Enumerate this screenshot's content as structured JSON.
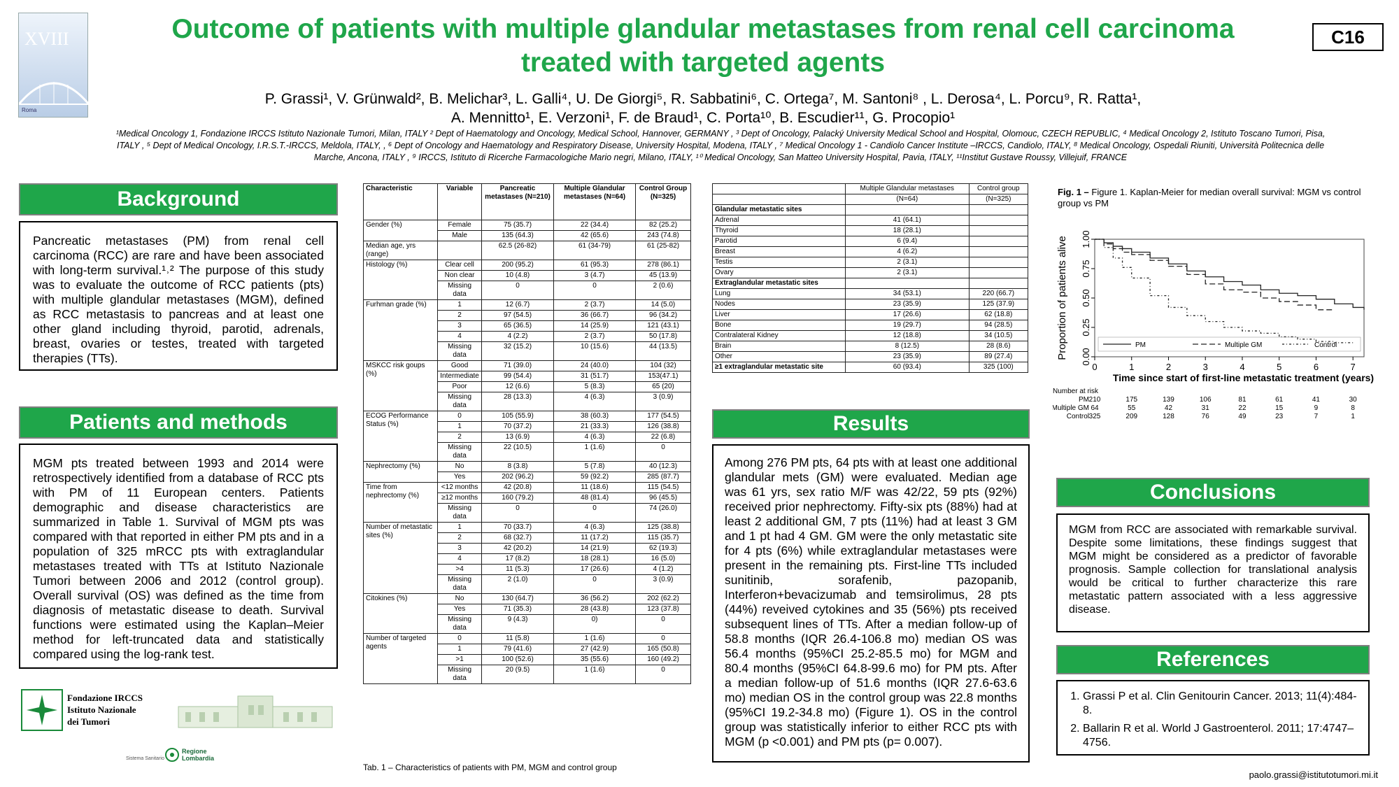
{
  "poster_code": "C16",
  "title_line1": "Outcome of patients with multiple glandular metastases from renal cell carcinoma",
  "title_line2": "treated with targeted agents",
  "authors_line1": "P. Grassi¹, V. Grünwald², B. Melichar³, L. Galli⁴, U. De Giorgi⁵, R. Sabbatini⁶, C. Ortega⁷, M. Santoni⁸ , L. Derosa⁴, L. Porcu⁹, R. Ratta¹,",
  "authors_line2": "A.  Mennitto¹, E. Verzoni¹, F. de Braud¹, C. Porta¹⁰, B. Escudier¹¹, G. Procopio¹",
  "affiliations": "¹Medical Oncology 1, Fondazione IRCCS Istituto Nazionale Tumori, Milan, ITALY  ² Dept of Haematology and Oncology, Medical School, Hannover, GERMANY , ³ Dept of Oncology, Palacký University Medical School and Hospital, Olomouc, CZECH REPUBLIC, ⁴ Medical Oncology  2, Istituto Toscano Tumori, Pisa, ITALY , ⁵ Dept of Medical Oncology, I.R.S.T.-IRCCS, Meldola, ITALY, , ⁶ Dept of Oncology and Haematology and Respiratory Disease, University Hospital, Modena, ITALY , ⁷ Medical Oncology 1 - Candiolo Cancer Institute –IRCCS, Candiolo, ITALY, ⁸ Medical Oncology, Ospedali Riuniti, Università Politecnica delle Marche, Ancona, ITALY , ⁹  IRCCS, Istituto di Ricerche Farmacologiche Mario negri, Milano,  ITALY, ¹⁰ Medical Oncology, San Matteo  University Hospital, Pavia, ITALY, ¹¹Institut Gustave Roussy, Villejuif, FRANCE",
  "badge": {
    "roman": "XVIII",
    "city": "Roma"
  },
  "sections": {
    "background_title": "Background",
    "background_text": "Pancreatic metastases (PM) from renal cell carcinoma (RCC) are rare and have been associated with long-term survival.¹˒² The purpose of this study was to evaluate the outcome of RCC patients (pts) with multiple glandular metastases (MGM), defined as RCC metastasis to pancreas and at least one other gland including thyroid, parotid, adrenals, breast, ovaries or testes, treated with targeted therapies (TTs).",
    "methods_title": "Patients and methods",
    "methods_text": "MGM pts treated between 1993 and 2014 were retrospectively identified from a database of RCC pts with PM of 11 European centers. Patients demographic and disease characteristics are summarized in Table 1. Survival of MGM pts was compared with that reported in either PM pts and in a population of 325 mRCC pts with extraglandular metastases treated with TTs at Istituto Nazionale Tumori between 2006 and 2012 (control group). Overall survival (OS) was defined as the time from diagnosis of metastatic disease to death. Survival functions were estimated using the Kaplan–Meier method for left-truncated data and statistically compared using the log-rank test.",
    "results_title": "Results",
    "results_text": "Among 276 PM pts, 64 pts with at least one additional glandular mets (GM) were evaluated. Median age was 61 yrs, sex ratio M/F was 42/22, 59 pts (92%) received prior nephrectomy. Fifty-six pts (88%) had at least 2 additional GM, 7 pts (11%) had at least 3 GM and 1 pt had 4 GM. GM were the only metastatic site for 4 pts (6%) while extraglandular metastases were present in the remaining pts. First-line TTs included sunitinib, sorafenib, pazopanib, Interferon+bevacizumab and temsirolimus, 28 pts (44%) reveived cytokines and 35 (56%) pts received subsequent lines of TTs. After a median follow-up of 58.8 months (IQR 26.4-106.8 mo) median OS was 56.4 months (95%CI 25.2-85.5 mo) for MGM and 80.4 months (95%CI 64.8-99.6 mo) for PM pts. After a median follow-up of 51.6 months (IQR 27.6-63.6 mo) median OS in the control group was 22.8 months (95%CI 19.2-34.8 mo) (Figure 1). OS in the control group was statistically inferior to either RCC pts with MGM (p <0.001) and PM pts (p= 0.007).",
    "conclusions_title": "Conclusions",
    "conclusions_text": "MGM from RCC are associated with remarkable survival. Despite some limitations, these findings suggest that MGM might be considered as a predictor of favorable prognosis. Sample collection for translational analysis would be critical to further characterize this rare metastatic pattern associated with a less aggressive disease.",
    "references_title": "References",
    "references": [
      "Grassi P et al. Clin Genitourin Cancer. 2013; 11(4):484-8.",
      "Ballarin R et al. World J Gastroenterol. 2011; 17:4747–4756."
    ]
  },
  "logos": {
    "ins_line1": "Fondazione IRCCS",
    "ins_line2": "Istituto Nazionale",
    "ins_line3": "dei Tumori",
    "regione_line1": "Regione",
    "regione_line2": "Lombardia",
    "sistema": "Sistema Sanitario"
  },
  "table1": {
    "headers": [
      "Characteristic",
      "Variable",
      "Pancreatic metastases (N=210)",
      "Multiple Glandular metastases (N=64)",
      "Control Group (N=325)"
    ],
    "groups": [
      {
        "name": "Gender (%)",
        "rows": [
          [
            "Female",
            "75 (35.7)",
            "22 (34.4)",
            "82 (25.2)"
          ],
          [
            "Male",
            "135 (64.3)",
            "42 (65.6)",
            "243 (74.8)"
          ]
        ]
      },
      {
        "name": "Median age, yrs (range)",
        "rows": [
          [
            "",
            "62.5 (26-82)",
            "61 (34-79)",
            "61 (25-82)"
          ]
        ]
      },
      {
        "name": "Histology (%)",
        "rows": [
          [
            "Clear cell",
            "200 (95.2)",
            "61 (95.3)",
            "278 (86.1)"
          ],
          [
            "Non clear",
            "10 (4.8)",
            "3 (4.7)",
            "45 (13.9)"
          ],
          [
            "Missing data",
            "0",
            "0",
            "2 (0.6)"
          ]
        ]
      },
      {
        "name": "Furhman grade (%)",
        "rows": [
          [
            "1",
            "12 (6.7)",
            "2 (3.7)",
            "14 (5.0)"
          ],
          [
            "2",
            "97 (54.5)",
            "36 (66.7)",
            "96 (34.2)"
          ],
          [
            "3",
            "65 (36.5)",
            "14 (25.9)",
            "121 (43.1)"
          ],
          [
            "4",
            "4 (2.2)",
            "2 (3.7)",
            "50 (17.8)"
          ],
          [
            "Missing data",
            "32 (15.2)",
            "10 (15.6)",
            "44 (13.5)"
          ]
        ]
      },
      {
        "name": "MSKCC risk goups (%)",
        "rows": [
          [
            "Good",
            "71 (39.0)",
            "24 (40.0)",
            "104 (32)"
          ],
          [
            "Intermediate",
            "99 (54.4)",
            "31 (51.7)",
            "153(47.1)"
          ],
          [
            "Poor",
            "12 (6.6)",
            "5 (8.3)",
            "65 (20)"
          ],
          [
            "Missing data",
            "28 (13.3)",
            "4 (6.3)",
            "3 (0.9)"
          ]
        ]
      },
      {
        "name": "ECOG Performance Status (%)",
        "rows": [
          [
            "0",
            "105 (55.9)",
            "38 (60.3)",
            "177 (54.5)"
          ],
          [
            "1",
            "70 (37.2)",
            "21 (33.3)",
            "126 (38.8)"
          ],
          [
            "2",
            "13 (6.9)",
            "4 (6.3)",
            "22 (6.8)"
          ],
          [
            "Missing data",
            "22 (10.5)",
            "1 (1.6)",
            "0"
          ]
        ]
      },
      {
        "name": "Nephrectomy (%)",
        "rows": [
          [
            "No",
            "8 (3.8)",
            "5 (7.8)",
            "40 (12.3)"
          ],
          [
            "Yes",
            "202 (96.2)",
            "59 (92.2)",
            "285 (87.7)"
          ]
        ]
      },
      {
        "name": "Time from nephrectomy (%)",
        "rows": [
          [
            "<12 months",
            "42 (20.8)",
            "11 (18.6)",
            "115 (54.5)"
          ],
          [
            "≥12 months",
            "160 (79.2)",
            "48 (81.4)",
            "96 (45.5)"
          ],
          [
            "Missing data",
            "0",
            "0",
            "74 (26.0)"
          ]
        ]
      },
      {
        "name": "Number of metastatic sites (%)",
        "rows": [
          [
            "1",
            "70 (33.7)",
            "4 (6.3)",
            "125 (38.8)"
          ],
          [
            "2",
            "68 (32.7)",
            "11 (17.2)",
            "115 (35.7)"
          ],
          [
            "3",
            "42 (20.2)",
            "14 (21.9)",
            "62 (19.3)"
          ],
          [
            "4",
            "17 (8.2)",
            "18 (28.1)",
            "16 (5.0)"
          ],
          [
            ">4",
            "11 (5.3)",
            "17 (26.6)",
            "4 (1.2)"
          ],
          [
            "Missing data",
            "2 (1.0)",
            "0",
            "3 (0.9)"
          ]
        ]
      },
      {
        "name": "Citokines (%)",
        "rows": [
          [
            "No",
            "130 (64.7)",
            "36 (56.2)",
            "202 (62.2)"
          ],
          [
            "Yes",
            "71 (35.3)",
            "28 (43.8)",
            "123 (37.8)"
          ],
          [
            "Missing data",
            "9 (4.3)",
            "0)",
            "0"
          ]
        ]
      },
      {
        "name": "Number of  targeted agents",
        "rows": [
          [
            "0",
            "11 (5.8)",
            "1 (1.6)",
            "0"
          ],
          [
            "1",
            "79 (41.6)",
            "27 (42.9)",
            "165 (50.8)"
          ],
          [
            ">1",
            "100 (52.6)",
            "35 (55.6)",
            "160 (49.2)"
          ],
          [
            "Missing data",
            "20 (9.5)",
            "1 (1.6)",
            "0"
          ]
        ]
      }
    ],
    "caption": "Tab. 1 – Characteristics of patients with PM, MGM and control group"
  },
  "table2": {
    "head1": "Multiple Glandular metastases",
    "head2": "Control group",
    "n1": "(N=64)",
    "n2": "(N=325)",
    "sections": [
      {
        "title": "Glandular metastatic sites",
        "rows": [
          [
            "Adrenal",
            "41 (64.1)",
            ""
          ],
          [
            "Thyroid",
            "18 (28.1)",
            ""
          ],
          [
            "Parotid",
            "6 (9.4)",
            ""
          ],
          [
            "Breast",
            "4 (6.2)",
            ""
          ],
          [
            "Testis",
            "2 (3.1)",
            ""
          ],
          [
            "Ovary",
            "2 (3.1)",
            ""
          ]
        ]
      },
      {
        "title": "Extraglandular metastatic sites",
        "rows": [
          [
            "Lung",
            "34 (53.1)",
            "220 (66.7)"
          ],
          [
            "Nodes",
            "23 (35.9)",
            "125 (37.9)"
          ],
          [
            "Liver",
            "17 (26.6)",
            "62 (18.8)"
          ],
          [
            "Bone",
            "19 (29.7)",
            "94 (28.5)"
          ],
          [
            "Contralateral Kidney",
            "12 (18.8)",
            "34 (10.5)"
          ],
          [
            "Brain",
            "8 (12.5)",
            "28 (8.6)"
          ],
          [
            "Other",
            "23 (35.9)",
            "89 (27.4)"
          ]
        ]
      }
    ],
    "total_row": [
      "≥1 extraglandular metastatic site",
      "60 (93.4)",
      "325 (100)"
    ]
  },
  "figure": {
    "caption_bold": "Fig. 1 –",
    "caption_text": " Figure 1. Kaplan-Meier for median overall survival: MGM vs control group vs PM"
  },
  "chart_data": {
    "type": "line",
    "title": "",
    "xlabel": "Time since start of first-line metastatic treatment (years)",
    "ylabel": "Proportion of patients alive",
    "xlim": [
      0,
      7.3
    ],
    "ylim": [
      0,
      1
    ],
    "xticks": [
      "0",
      "1",
      "2",
      "3",
      "4",
      "5",
      "6",
      "7"
    ],
    "yticks": [
      "0.00",
      "0.25",
      "0.50",
      "0.75",
      "1.00"
    ],
    "series": [
      {
        "name": "PM",
        "x": [
          0,
          0.25,
          0.5,
          0.75,
          1,
          1.5,
          2,
          2.5,
          3,
          3.5,
          4,
          4.5,
          5,
          5.5,
          6,
          6.5,
          7,
          7.3
        ],
        "y": [
          1,
          0.97,
          0.94,
          0.92,
          0.89,
          0.84,
          0.79,
          0.73,
          0.68,
          0.64,
          0.61,
          0.57,
          0.54,
          0.52,
          0.49,
          0.45,
          0.42,
          0.4
        ]
      },
      {
        "name": "Multiple GM",
        "x": [
          0,
          0.25,
          0.5,
          0.75,
          1,
          1.5,
          2,
          2.5,
          3,
          3.5,
          4,
          4.5,
          5,
          5.5,
          6,
          6.5
        ],
        "y": [
          1,
          0.96,
          0.92,
          0.89,
          0.87,
          0.82,
          0.77,
          0.7,
          0.62,
          0.57,
          0.55,
          0.5,
          0.47,
          0.44,
          0.4,
          0.4
        ]
      },
      {
        "name": "Control",
        "x": [
          0,
          0.25,
          0.5,
          0.75,
          1,
          1.5,
          2,
          2.5,
          3,
          3.5,
          4,
          4.5,
          5,
          5.5,
          6,
          6.5,
          7
        ],
        "y": [
          1,
          0.93,
          0.84,
          0.76,
          0.67,
          0.52,
          0.42,
          0.35,
          0.3,
          0.25,
          0.22,
          0.2,
          0.17,
          0.15,
          0.13,
          0.12,
          0.12
        ]
      }
    ],
    "legend": [
      "PM",
      "Multiple GM",
      "Control"
    ],
    "risk_label": "Number at risk",
    "risk_table": [
      {
        "name": "PM",
        "values": [
          "210",
          "175",
          "139",
          "106",
          "81",
          "61",
          "41",
          "30"
        ]
      },
      {
        "name": "Multiple GM",
        "values": [
          "64",
          "55",
          "42",
          "31",
          "22",
          "15",
          "9",
          "8"
        ]
      },
      {
        "name": "Control",
        "values": [
          "325",
          "209",
          "128",
          "76",
          "49",
          "23",
          "7",
          "1"
        ]
      }
    ]
  },
  "email": "paolo.grassi@istitutotumori.mi.it"
}
